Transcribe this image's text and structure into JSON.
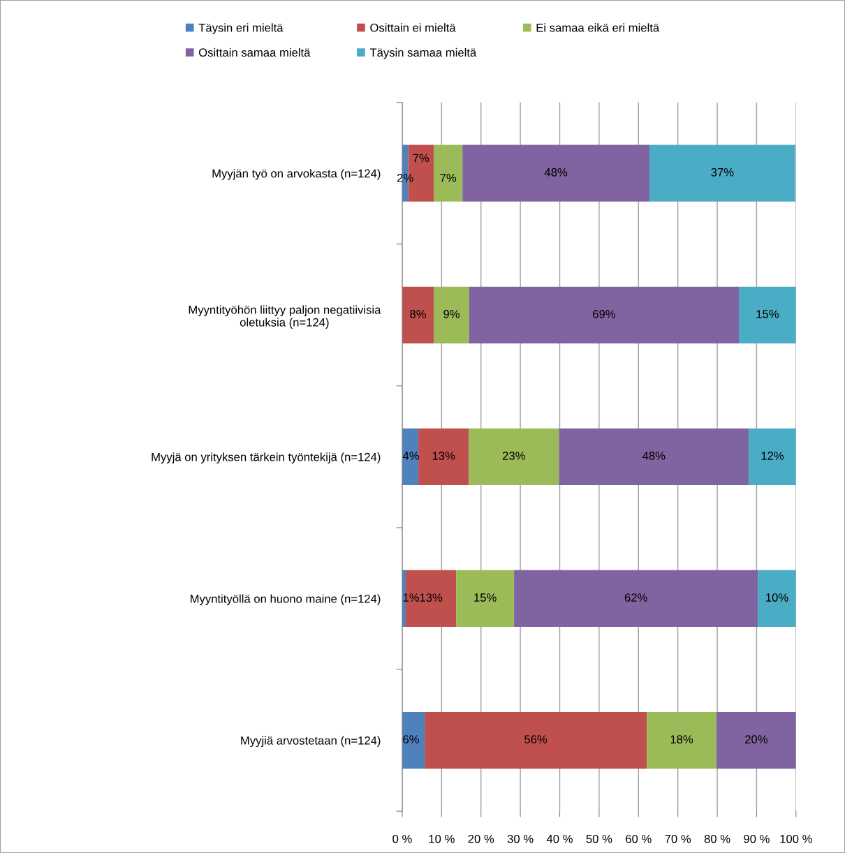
{
  "chart_data": {
    "type": "bar",
    "orientation": "horizontal",
    "stacked": true,
    "categories": [
      "Myyjän työ on arvokasta (n=124)",
      "Myyntityöhön liittyy paljon negatiivisia oletuksia (n=124)",
      "Myyjä on yrityksen tärkein työntekijä (n=124)",
      "Myyntityöllä on huono maine (n=124)",
      "Myyjiä arvostetaan (n=124)"
    ],
    "series": [
      {
        "name": "Täysin eri mieltä",
        "color": "#4f81bd",
        "values": [
          1.5,
          0,
          4.1,
          0.9,
          5.7
        ],
        "value_labels": [
          "2%",
          null,
          "4%",
          "1%",
          "6%"
        ]
      },
      {
        "name": "Osittain ei mieltä",
        "color": "#c0504d",
        "values": [
          6.5,
          8.0,
          12.8,
          12.8,
          56.4
        ],
        "value_labels": [
          "7%",
          "8%",
          "13%",
          "13%",
          "56%"
        ]
      },
      {
        "name": "Ei samaa eikä eri mieltä",
        "color": "#9bbb59",
        "values": [
          7.3,
          9.0,
          22.9,
          14.7,
          17.7
        ],
        "value_labels": [
          "7%",
          "9%",
          "23%",
          "15%",
          "18%"
        ]
      },
      {
        "name": "Osittain samaa mieltä",
        "color": "#8064a2",
        "values": [
          47.5,
          68.5,
          48.2,
          61.9,
          20.2
        ],
        "value_labels": [
          "48%",
          "69%",
          "48%",
          "62%",
          "20%"
        ]
      },
      {
        "name": "Täysin samaa mieltä",
        "color": "#4bacc6",
        "values": [
          37.0,
          14.5,
          12.0,
          9.7,
          0
        ],
        "value_labels": [
          "37%",
          "15%",
          "12%",
          "10%",
          null
        ]
      }
    ],
    "xlim": [
      0,
      100
    ],
    "xticks": [
      {
        "value": 0,
        "label": "0 %"
      },
      {
        "value": 10,
        "label": "10 %"
      },
      {
        "value": 20,
        "label": "20 %"
      },
      {
        "value": 30,
        "label": "30 %"
      },
      {
        "value": 40,
        "label": "40 %"
      },
      {
        "value": 50,
        "label": "50 %"
      },
      {
        "value": 60,
        "label": "60 %"
      },
      {
        "value": 70,
        "label": "70 %"
      },
      {
        "value": 80,
        "label": "80 %"
      },
      {
        "value": 90,
        "label": "90 %"
      },
      {
        "value": 100,
        "label": "100 %"
      }
    ],
    "grid": "x",
    "legend": "top"
  }
}
